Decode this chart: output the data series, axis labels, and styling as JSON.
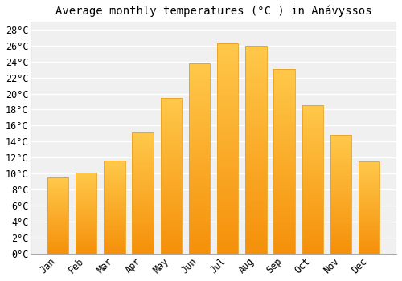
{
  "title": "Average monthly temperatures (°C ) in Anávyssos",
  "months": [
    "Jan",
    "Feb",
    "Mar",
    "Apr",
    "May",
    "Jun",
    "Jul",
    "Aug",
    "Sep",
    "Oct",
    "Nov",
    "Dec"
  ],
  "values": [
    9.5,
    10.1,
    11.6,
    15.1,
    19.5,
    23.8,
    26.3,
    26.0,
    23.1,
    18.5,
    14.8,
    11.5
  ],
  "bar_color_top": "#FFC84A",
  "bar_color_bottom": "#F5900A",
  "bar_edge_color": "#E8A020",
  "ylim": [
    0,
    29
  ],
  "ytick_step": 2,
  "background_color": "#ffffff",
  "plot_bg_color": "#f0f0f0",
  "grid_color": "#ffffff",
  "title_fontsize": 10,
  "tick_fontsize": 8.5,
  "font_family": "monospace"
}
